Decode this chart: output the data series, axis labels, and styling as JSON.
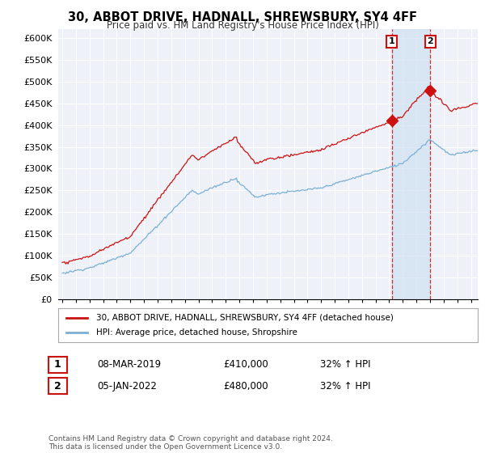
{
  "title": "30, ABBOT DRIVE, HADNALL, SHREWSBURY, SY4 4FF",
  "subtitle": "Price paid vs. HM Land Registry's House Price Index (HPI)",
  "ylim": [
    0,
    620000
  ],
  "yticks": [
    0,
    50000,
    100000,
    150000,
    200000,
    250000,
    300000,
    350000,
    400000,
    450000,
    500000,
    550000,
    600000
  ],
  "hpi_color": "#7bafd4",
  "property_color": "#cc1111",
  "legend_label_property": "30, ABBOT DRIVE, HADNALL, SHREWSBURY, SY4 4FF (detached house)",
  "legend_label_hpi": "HPI: Average price, detached house, Shropshire",
  "transaction1_label": "1",
  "transaction1_date": "08-MAR-2019",
  "transaction1_price": "£410,000",
  "transaction1_hpi": "32% ↑ HPI",
  "transaction1_year": 2019.19,
  "transaction1_value": 410000,
  "transaction2_label": "2",
  "transaction2_date": "05-JAN-2022",
  "transaction2_price": "£480,000",
  "transaction2_hpi": "32% ↑ HPI",
  "transaction2_year": 2022.01,
  "transaction2_value": 480000,
  "footnote": "Contains HM Land Registry data © Crown copyright and database right 2024.\nThis data is licensed under the Open Government Licence v3.0.",
  "background_color": "#ffffff",
  "plot_bg_color": "#eef2f8",
  "shade_color": "#d0e0f0",
  "xlim_left": 1994.7,
  "xlim_right": 2025.5
}
